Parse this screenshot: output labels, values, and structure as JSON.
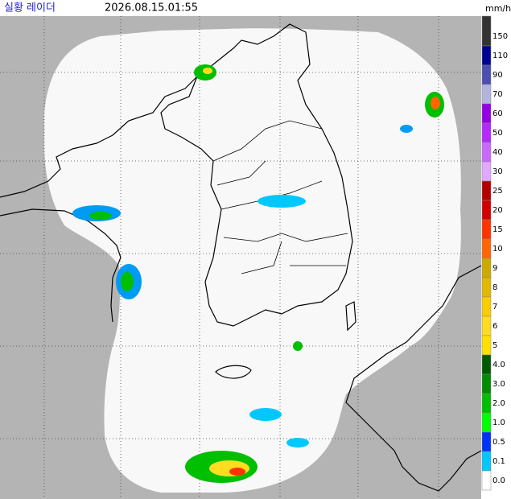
{
  "header": {
    "title": "실황 레이더",
    "timestamp": "2026.08.15.01:55",
    "unit": "mm/h"
  },
  "legend": {
    "items": [
      {
        "label": "150",
        "color": "#333333"
      },
      {
        "label": "110",
        "color": "#000390"
      },
      {
        "label": "90",
        "color": "#4c4eb1"
      },
      {
        "label": "70",
        "color": "#b3b4de"
      },
      {
        "label": "60",
        "color": "#9300e4"
      },
      {
        "label": "50",
        "color": "#b329ff"
      },
      {
        "label": "40",
        "color": "#c969ff"
      },
      {
        "label": "30",
        "color": "#e0a9ff"
      },
      {
        "label": "25",
        "color": "#b40000"
      },
      {
        "label": "20",
        "color": "#d20000"
      },
      {
        "label": "15",
        "color": "#ff3200"
      },
      {
        "label": "10",
        "color": "#ff6600"
      },
      {
        "label": "9",
        "color": "#ccaa00"
      },
      {
        "label": "8",
        "color": "#e0b900"
      },
      {
        "label": "7",
        "color": "#f9cd00"
      },
      {
        "label": "6",
        "color": "#ffdc1f"
      },
      {
        "label": "5",
        "color": "#ffe100"
      },
      {
        "label": "4.0",
        "color": "#005a00"
      },
      {
        "label": "3.0",
        "color": "#008c00"
      },
      {
        "label": "2.0",
        "color": "#00be00"
      },
      {
        "label": "1.0",
        "color": "#00ff00"
      },
      {
        "label": "0.5",
        "color": "#0033f5"
      },
      {
        "label": "0.1",
        "color": "#00c8ff"
      },
      {
        "label": "0.0",
        "color": "#ffffff"
      }
    ]
  }
}
